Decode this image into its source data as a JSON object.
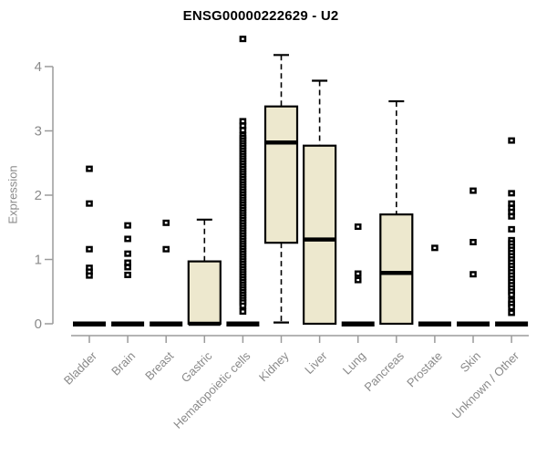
{
  "header": {
    "title": "ENSG00000222629 - U2"
  },
  "colors": {
    "box_fill": "#EDE8CE",
    "box_stroke": "#000000",
    "median": "#000000",
    "outlier": "#000000",
    "axis_line": "#9b9b9b",
    "axis_text": "#8a8a8a",
    "title_text": "#000000"
  },
  "chart_data": {
    "type": "boxplot",
    "title": "ENSG00000222629 - U2",
    "xlabel": "",
    "ylabel": "Expression",
    "yticks": [
      0,
      1,
      2,
      3,
      4
    ],
    "ylim": [
      0,
      4.6
    ],
    "grid": false,
    "legend": "none",
    "categories": [
      "Bladder",
      "Brain",
      "Breast",
      "Gastric",
      "Hematopoietic cells",
      "Kidney",
      "Liver",
      "Lung",
      "Pancreas",
      "Prostate",
      "Skin",
      "Unknown / Other"
    ],
    "series": [
      {
        "label": "Bladder",
        "whisker_low": 0,
        "q1": 0,
        "median": 0,
        "q3": 0,
        "whisker_high": 0,
        "outliers": [
          2.41,
          1.87,
          1.16,
          0.87,
          0.81,
          0.75
        ]
      },
      {
        "label": "Brain",
        "whisker_low": 0,
        "q1": 0,
        "median": 0,
        "q3": 0,
        "whisker_high": 0,
        "outliers": [
          1.53,
          1.32,
          1.09,
          0.95,
          0.88,
          0.76
        ]
      },
      {
        "label": "Breast",
        "whisker_low": 0,
        "q1": 0,
        "median": 0,
        "q3": 0,
        "whisker_high": 0,
        "outliers": [
          1.57,
          1.16
        ]
      },
      {
        "label": "Gastric",
        "whisker_low": 0,
        "q1": 0,
        "median": 0,
        "q3": 0.97,
        "whisker_high": 1.62,
        "outliers": []
      },
      {
        "label": "Hematopoietic cells",
        "whisker_low": 0,
        "q1": 0,
        "median": 0,
        "q3": 0,
        "whisker_high": 0,
        "outliers": [
          4.43,
          3.15,
          3.08,
          3.01,
          2.93,
          2.89,
          2.85,
          2.81,
          2.77,
          2.73,
          2.69,
          2.65,
          2.61,
          2.57,
          2.53,
          2.49,
          2.45,
          2.41,
          2.37,
          2.33,
          2.29,
          2.25,
          2.21,
          2.17,
          2.13,
          2.09,
          2.05,
          2.01,
          1.97,
          1.93,
          1.89,
          1.85,
          1.81,
          1.77,
          1.73,
          1.69,
          1.65,
          1.61,
          1.57,
          1.53,
          1.49,
          1.45,
          1.41,
          1.37,
          1.33,
          1.29,
          1.25,
          1.21,
          1.17,
          1.13,
          1.09,
          1.05,
          1.01,
          0.97,
          0.93,
          0.89,
          0.85,
          0.81,
          0.77,
          0.73,
          0.69,
          0.65,
          0.61,
          0.57,
          0.53,
          0.49,
          0.45,
          0.41,
          0.37,
          0.33,
          0.28,
          0.19
        ]
      },
      {
        "label": "Kidney",
        "whisker_low": 0.02,
        "q1": 1.26,
        "median": 2.82,
        "q3": 3.38,
        "whisker_high": 4.18,
        "outliers": []
      },
      {
        "label": "Liver",
        "whisker_low": 0,
        "q1": 0,
        "median": 1.31,
        "q3": 2.77,
        "whisker_high": 3.78,
        "outliers": []
      },
      {
        "label": "Lung",
        "whisker_low": 0,
        "q1": 0,
        "median": 0,
        "q3": 0,
        "whisker_high": 0,
        "outliers": [
          1.51,
          0.78,
          0.68
        ]
      },
      {
        "label": "Pancreas",
        "whisker_low": 0,
        "q1": 0,
        "median": 0.79,
        "q3": 1.7,
        "whisker_high": 3.46,
        "outliers": []
      },
      {
        "label": "Prostate",
        "whisker_low": 0,
        "q1": 0,
        "median": 0,
        "q3": 0,
        "whisker_high": 0,
        "outliers": [
          1.18
        ]
      },
      {
        "label": "Skin",
        "whisker_low": 0,
        "q1": 0,
        "median": 0,
        "q3": 0,
        "whisker_high": 0,
        "outliers": [
          2.07,
          1.27,
          0.77
        ]
      },
      {
        "label": "Unknown / Other",
        "whisker_low": 0,
        "q1": 0,
        "median": 0,
        "q3": 0,
        "whisker_high": 0,
        "outliers": [
          2.85,
          2.03,
          1.87,
          1.8,
          1.74,
          1.67,
          1.47,
          1.3,
          1.25,
          1.2,
          1.15,
          1.1,
          1.05,
          1.0,
          0.95,
          0.9,
          0.85,
          0.8,
          0.75,
          0.7,
          0.65,
          0.6,
          0.55,
          0.5,
          0.45,
          0.36,
          0.31,
          0.26,
          0.17
        ]
      }
    ]
  }
}
